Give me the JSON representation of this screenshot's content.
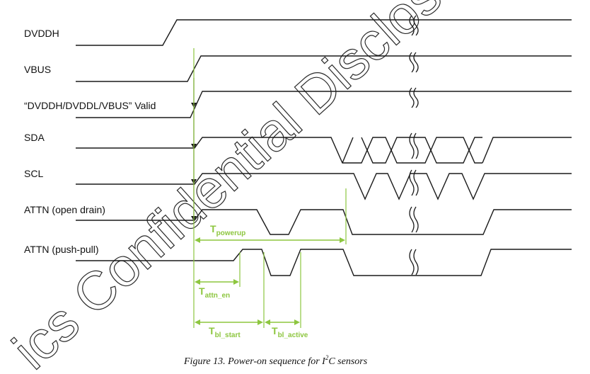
{
  "signals": {
    "dvddh": "DVDDH",
    "vbus": "VBUS",
    "valid": "“DVDDH/DVDDL/VBUS” Valid",
    "sda": "SDA",
    "scl": "SCL",
    "attn_od": "ATTN (open drain)",
    "attn_pp": "ATTN (push-pull)"
  },
  "timings": {
    "powerup": {
      "main": "T",
      "sub": "powerup"
    },
    "attn_en": {
      "main": "T",
      "sub": "attn_en"
    },
    "bl_start": {
      "main": "T",
      "sub": "bl_start"
    },
    "bl_active": {
      "main": "T",
      "sub": "bl_active"
    }
  },
  "caption": {
    "prefix": "Figure 13.  Power-on sequence for ",
    "i": "I",
    "sup": "2",
    "suffix": "C sensors"
  },
  "watermark": "ics Confidential Disclosed Unc",
  "colors": {
    "signal": "#1a1a1a",
    "annotation": "#8dc63f",
    "background": "#ffffff"
  }
}
